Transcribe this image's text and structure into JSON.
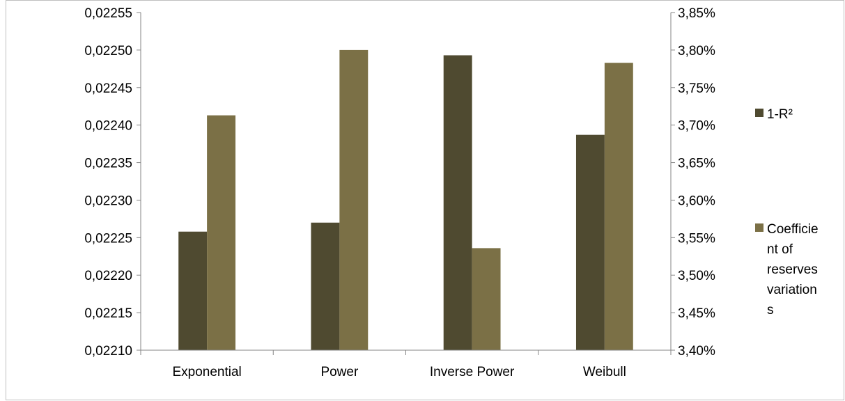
{
  "chart_data": {
    "type": "bar",
    "title": "",
    "xlabel": "",
    "ylabel": "",
    "categories": [
      "Exponential",
      "Power",
      "Inverse Power",
      "Weibull"
    ],
    "series": [
      {
        "name": "1-R²",
        "axis": "left",
        "color": "#4f4a30",
        "values": [
          0.022258,
          0.02227,
          0.022493,
          0.022387
        ]
      },
      {
        "name": "Coefficient of reserves variations",
        "legend_lines": [
          "Coefficie",
          "nt of",
          "reserves",
          "variation",
          "s"
        ],
        "axis": "right",
        "color": "#7b7046",
        "values": [
          0.03713,
          0.038,
          0.03536,
          0.03783
        ]
      }
    ],
    "y_left": {
      "lim": [
        0.0221,
        0.02255
      ],
      "ticks": [
        0.0221,
        0.02215,
        0.0222,
        0.02225,
        0.0223,
        0.02235,
        0.0224,
        0.02245,
        0.0225,
        0.02255
      ],
      "tick_labels": [
        "0,02210",
        "0,02215",
        "0,02220",
        "0,02225",
        "0,02230",
        "0,02235",
        "0,02240",
        "0,02245",
        "0,02250",
        "0,02255"
      ]
    },
    "y_right": {
      "lim": [
        0.034,
        0.0385
      ],
      "ticks": [
        0.034,
        0.0345,
        0.035,
        0.0355,
        0.036,
        0.0365,
        0.037,
        0.0375,
        0.038,
        0.0385
      ],
      "tick_labels": [
        "3,40%",
        "3,45%",
        "3,50%",
        "3,55%",
        "3,60%",
        "3,65%",
        "3,70%",
        "3,75%",
        "3,80%",
        "3,85%"
      ]
    },
    "grid": false,
    "legend_position": "right"
  }
}
